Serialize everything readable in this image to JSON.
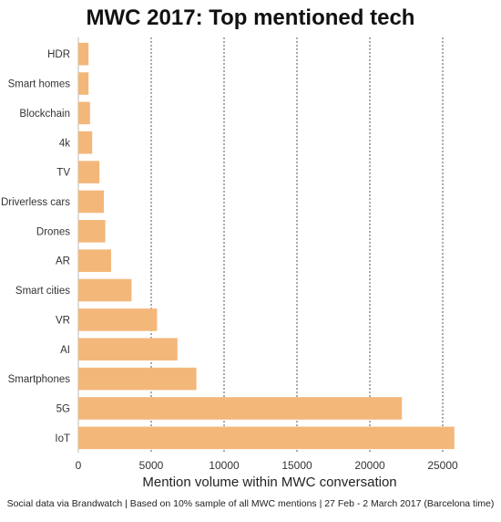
{
  "chart_data": {
    "type": "bar",
    "orientation": "horizontal",
    "title": "MWC 2017: Top mentioned tech",
    "xlabel": "Mention volume within MWC conversation",
    "ylabel": "",
    "categories": [
      "HDR",
      "Smart homes",
      "Blockchain",
      "4k",
      "TV",
      "Driverless cars",
      "Drones",
      "AR",
      "Smart cities",
      "VR",
      "AI",
      "Smartphones",
      "5G",
      "IoT"
    ],
    "values": [
      700,
      700,
      800,
      950,
      1450,
      1750,
      1850,
      2250,
      3650,
      5400,
      6800,
      8100,
      22200,
      25800
    ],
    "xlim": [
      0,
      26000
    ],
    "xticks": [
      0,
      5000,
      10000,
      15000,
      20000,
      25000
    ],
    "grid": "vertical dotted",
    "bar_color": "#f4b77a",
    "footnote": "Social data via Brandwatch | Based on 10% sample of all MWC mentions | 27 Feb - 2 March 2017 (Barcelona time)"
  }
}
